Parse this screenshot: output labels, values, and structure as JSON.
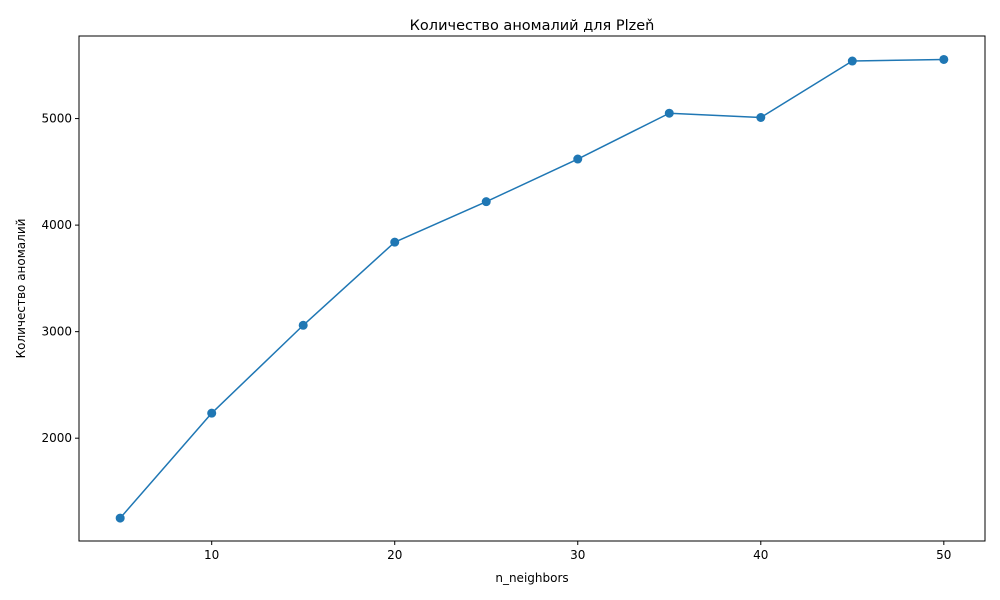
{
  "chart_data": {
    "type": "line",
    "title": "Количество аномалий для Plzeň",
    "xlabel": "n_neighbors",
    "ylabel": "Количество аномалий",
    "xlim": [
      2.75,
      52.25
    ],
    "ylim": [
      1035,
      5775
    ],
    "x_ticks": [
      10,
      20,
      30,
      40,
      50
    ],
    "y_ticks": [
      2000,
      3000,
      4000,
      5000
    ],
    "grid": false,
    "series": [
      {
        "color": "#1f77b4",
        "marker": "circle",
        "x": [
          5,
          10,
          15,
          20,
          25,
          30,
          35,
          40,
          45,
          50
        ],
        "y": [
          1250,
          2235,
          3060,
          3840,
          4220,
          4620,
          5050,
          5010,
          5540,
          5555
        ]
      }
    ]
  }
}
